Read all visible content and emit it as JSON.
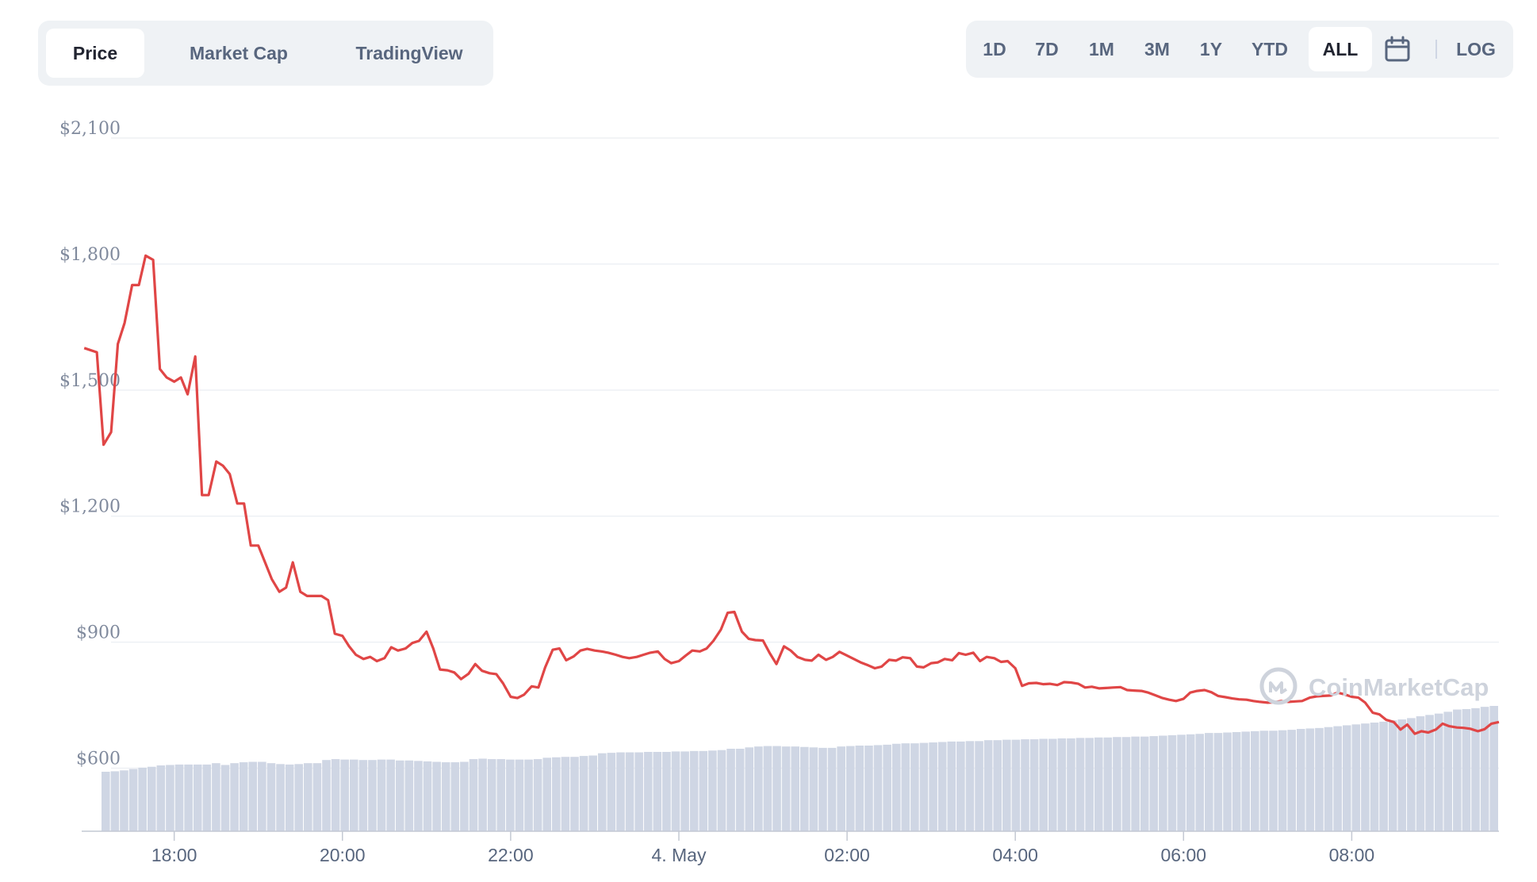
{
  "chart_tabs": [
    {
      "label": "Price",
      "active": true
    },
    {
      "label": "Market Cap",
      "active": false
    },
    {
      "label": "TradingView",
      "active": false
    }
  ],
  "ranges": [
    {
      "label": "1D",
      "active": false
    },
    {
      "label": "7D",
      "active": false
    },
    {
      "label": "1M",
      "active": false
    },
    {
      "label": "3M",
      "active": false
    },
    {
      "label": "1Y",
      "active": false
    },
    {
      "label": "YTD",
      "active": false
    },
    {
      "label": "ALL",
      "active": true
    }
  ],
  "calendar_icon": "calendar-icon",
  "log_label": "LOG",
  "watermark": "CoinMarketCap",
  "colors": {
    "line": "#e04646",
    "volume": "#cfd6e4",
    "grid": "#eef0f4",
    "axis": "#808a9d"
  },
  "chart_data": {
    "type": "line",
    "title": "",
    "xlabel": "",
    "ylabel": "",
    "ylim": [
      450,
      2100
    ],
    "yticks": [
      {
        "value": 2100,
        "label": "$2,100"
      },
      {
        "value": 1800,
        "label": "$1,800"
      },
      {
        "value": 1500,
        "label": "$1,500"
      },
      {
        "value": 1200,
        "label": "$1,200"
      },
      {
        "value": 900,
        "label": "$900"
      },
      {
        "value": 600,
        "label": "$600"
      }
    ],
    "xlim": [
      16.9,
      33.75
    ],
    "xticks": [
      {
        "value": 18,
        "label": "18:00"
      },
      {
        "value": 20,
        "label": "20:00"
      },
      {
        "value": 22,
        "label": "22:00"
      },
      {
        "value": 24,
        "label": "4. May"
      },
      {
        "value": 26,
        "label": "02:00"
      },
      {
        "value": 28,
        "label": "04:00"
      },
      {
        "value": 30,
        "label": "06:00"
      },
      {
        "value": 32,
        "label": "08:00"
      }
    ],
    "grid": true,
    "series": [
      {
        "points": [
          [
            16.93,
            1600
          ],
          [
            17.08,
            1590
          ],
          [
            17.16,
            1370
          ],
          [
            17.25,
            1400
          ],
          [
            17.33,
            1610
          ],
          [
            17.41,
            1660
          ],
          [
            17.5,
            1750
          ],
          [
            17.58,
            1750
          ],
          [
            17.66,
            1820
          ],
          [
            17.75,
            1810
          ],
          [
            17.83,
            1550
          ],
          [
            17.91,
            1530
          ],
          [
            18.0,
            1520
          ],
          [
            18.08,
            1530
          ],
          [
            18.16,
            1490
          ],
          [
            18.25,
            1580
          ],
          [
            18.33,
            1250
          ],
          [
            18.41,
            1250
          ],
          [
            18.5,
            1330
          ],
          [
            18.58,
            1320
          ],
          [
            18.66,
            1300
          ],
          [
            18.75,
            1230
          ],
          [
            18.83,
            1230
          ],
          [
            18.91,
            1130
          ],
          [
            19.0,
            1130
          ],
          [
            19.08,
            1090
          ],
          [
            19.16,
            1050
          ],
          [
            19.25,
            1020
          ],
          [
            19.33,
            1030
          ],
          [
            19.41,
            1090
          ],
          [
            19.5,
            1020
          ],
          [
            19.58,
            1010
          ],
          [
            19.66,
            1010
          ],
          [
            19.75,
            1010
          ],
          [
            19.83,
            1000
          ],
          [
            19.91,
            920
          ],
          [
            20.0,
            915
          ],
          [
            20.08,
            890
          ],
          [
            20.16,
            870
          ],
          [
            20.25,
            860
          ],
          [
            20.33,
            865
          ],
          [
            20.41,
            855
          ],
          [
            20.5,
            862
          ],
          [
            20.58,
            888
          ],
          [
            20.66,
            880
          ],
          [
            20.75,
            885
          ],
          [
            20.83,
            898
          ],
          [
            20.91,
            903
          ],
          [
            21.0,
            925
          ],
          [
            21.08,
            885
          ],
          [
            21.16,
            835
          ],
          [
            21.25,
            833
          ],
          [
            21.33,
            828
          ],
          [
            21.41,
            812
          ],
          [
            21.5,
            825
          ],
          [
            21.58,
            848
          ],
          [
            21.66,
            832
          ],
          [
            21.75,
            826
          ],
          [
            21.83,
            824
          ],
          [
            21.91,
            802
          ],
          [
            22.0,
            770
          ],
          [
            22.08,
            767
          ],
          [
            22.16,
            775
          ],
          [
            22.25,
            795
          ],
          [
            22.33,
            792
          ],
          [
            22.41,
            840
          ],
          [
            22.5,
            882
          ],
          [
            22.58,
            885
          ],
          [
            22.66,
            857
          ],
          [
            22.75,
            866
          ],
          [
            22.83,
            880
          ],
          [
            22.91,
            884
          ],
          [
            23.0,
            880
          ],
          [
            23.08,
            878
          ],
          [
            23.16,
            875
          ],
          [
            23.25,
            870
          ],
          [
            23.33,
            865
          ],
          [
            23.41,
            862
          ],
          [
            23.5,
            865
          ],
          [
            23.58,
            870
          ],
          [
            23.66,
            875
          ],
          [
            23.75,
            878
          ],
          [
            23.83,
            860
          ],
          [
            23.91,
            850
          ],
          [
            24.0,
            855
          ],
          [
            24.08,
            868
          ],
          [
            24.16,
            880
          ],
          [
            24.25,
            878
          ],
          [
            24.33,
            885
          ],
          [
            24.41,
            903
          ],
          [
            24.5,
            930
          ],
          [
            24.58,
            970
          ],
          [
            24.66,
            972
          ],
          [
            24.75,
            925
          ],
          [
            24.83,
            908
          ],
          [
            24.91,
            905
          ],
          [
            25.0,
            904
          ],
          [
            25.08,
            874
          ],
          [
            25.16,
            848
          ],
          [
            25.25,
            890
          ],
          [
            25.33,
            880
          ],
          [
            25.41,
            865
          ],
          [
            25.5,
            858
          ],
          [
            25.58,
            856
          ],
          [
            25.66,
            870
          ],
          [
            25.75,
            858
          ],
          [
            25.83,
            865
          ],
          [
            25.91,
            877
          ],
          [
            26.0,
            868
          ],
          [
            26.08,
            860
          ],
          [
            26.16,
            852
          ],
          [
            26.25,
            845
          ],
          [
            26.33,
            838
          ],
          [
            26.41,
            842
          ],
          [
            26.5,
            858
          ],
          [
            26.58,
            856
          ],
          [
            26.66,
            864
          ],
          [
            26.75,
            862
          ],
          [
            26.83,
            842
          ],
          [
            26.91,
            840
          ],
          [
            27.0,
            850
          ],
          [
            27.08,
            852
          ],
          [
            27.16,
            860
          ],
          [
            27.25,
            857
          ],
          [
            27.33,
            874
          ],
          [
            27.41,
            870
          ],
          [
            27.5,
            875
          ],
          [
            27.58,
            855
          ],
          [
            27.66,
            865
          ],
          [
            27.75,
            862
          ],
          [
            27.83,
            853
          ],
          [
            27.91,
            855
          ],
          [
            28.0,
            838
          ],
          [
            28.08,
            796
          ],
          [
            28.16,
            802
          ],
          [
            28.25,
            803
          ],
          [
            28.33,
            800
          ],
          [
            28.41,
            801
          ],
          [
            28.5,
            798
          ],
          [
            28.58,
            805
          ],
          [
            28.66,
            804
          ],
          [
            28.75,
            801
          ],
          [
            28.83,
            792
          ],
          [
            28.91,
            794
          ],
          [
            29.0,
            790
          ],
          [
            29.08,
            791
          ],
          [
            29.16,
            792
          ],
          [
            29.25,
            793
          ],
          [
            29.33,
            786
          ],
          [
            29.41,
            785
          ],
          [
            29.5,
            784
          ],
          [
            29.58,
            780
          ],
          [
            29.66,
            774
          ],
          [
            29.75,
            767
          ],
          [
            29.83,
            763
          ],
          [
            29.91,
            760
          ],
          [
            30.0,
            765
          ],
          [
            30.08,
            780
          ],
          [
            30.16,
            784
          ],
          [
            30.25,
            786
          ],
          [
            30.33,
            781
          ],
          [
            30.41,
            772
          ],
          [
            30.5,
            769
          ],
          [
            30.58,
            766
          ],
          [
            30.66,
            764
          ],
          [
            30.75,
            763
          ],
          [
            30.83,
            760
          ],
          [
            30.91,
            758
          ],
          [
            31.0,
            756
          ],
          [
            31.08,
            757
          ],
          [
            31.16,
            760
          ],
          [
            31.25,
            758
          ],
          [
            31.33,
            759
          ],
          [
            31.41,
            760
          ],
          [
            31.5,
            768
          ],
          [
            31.58,
            771
          ],
          [
            31.66,
            772
          ],
          [
            31.75,
            773
          ],
          [
            31.83,
            780
          ],
          [
            31.91,
            776
          ],
          [
            32.0,
            770
          ],
          [
            32.08,
            768
          ],
          [
            32.16,
            756
          ],
          [
            32.25,
            732
          ],
          [
            32.33,
            728
          ],
          [
            32.41,
            715
          ],
          [
            32.5,
            710
          ],
          [
            32.58,
            692
          ],
          [
            32.66,
            704
          ],
          [
            32.75,
            682
          ],
          [
            32.83,
            688
          ],
          [
            32.91,
            685
          ],
          [
            33.0,
            692
          ],
          [
            33.08,
            706
          ],
          [
            33.16,
            700
          ],
          [
            33.25,
            697
          ],
          [
            33.33,
            696
          ],
          [
            33.41,
            694
          ],
          [
            33.5,
            688
          ],
          [
            33.58,
            693
          ],
          [
            33.66,
            706
          ],
          [
            33.75,
            710
          ]
        ]
      }
    ],
    "volume": [
      132,
      133,
      135,
      138,
      141,
      143,
      146,
      147,
      148,
      148,
      148,
      148,
      151,
      147,
      151,
      153,
      154,
      154,
      151,
      149,
      148,
      149,
      151,
      151,
      158,
      160,
      159,
      159,
      158,
      158,
      159,
      159,
      157,
      157,
      156,
      155,
      154,
      153,
      153,
      154,
      160,
      161,
      160,
      160,
      159,
      159,
      159,
      160,
      163,
      164,
      165,
      165,
      167,
      168,
      173,
      174,
      175,
      175,
      175,
      176,
      176,
      176,
      177,
      177,
      178,
      178,
      179,
      180,
      183,
      183,
      186,
      188,
      189,
      189,
      188,
      188,
      187,
      186,
      185,
      185,
      188,
      189,
      190,
      190,
      191,
      192,
      194,
      195,
      195,
      196,
      197,
      198,
      199,
      199,
      200,
      200,
      202,
      202,
      203,
      203,
      204,
      204,
      205,
      205,
      206,
      206,
      207,
      207,
      208,
      208,
      209,
      209,
      210,
      210,
      211,
      212,
      213,
      214,
      215,
      216,
      218,
      218,
      219,
      220,
      221,
      222,
      223,
      223,
      224,
      225,
      227,
      228,
      229,
      231,
      233,
      235,
      237,
      239,
      241,
      243,
      246,
      248,
      251,
      255,
      258,
      261,
      265,
      270,
      271,
      273,
      276,
      278
    ]
  }
}
